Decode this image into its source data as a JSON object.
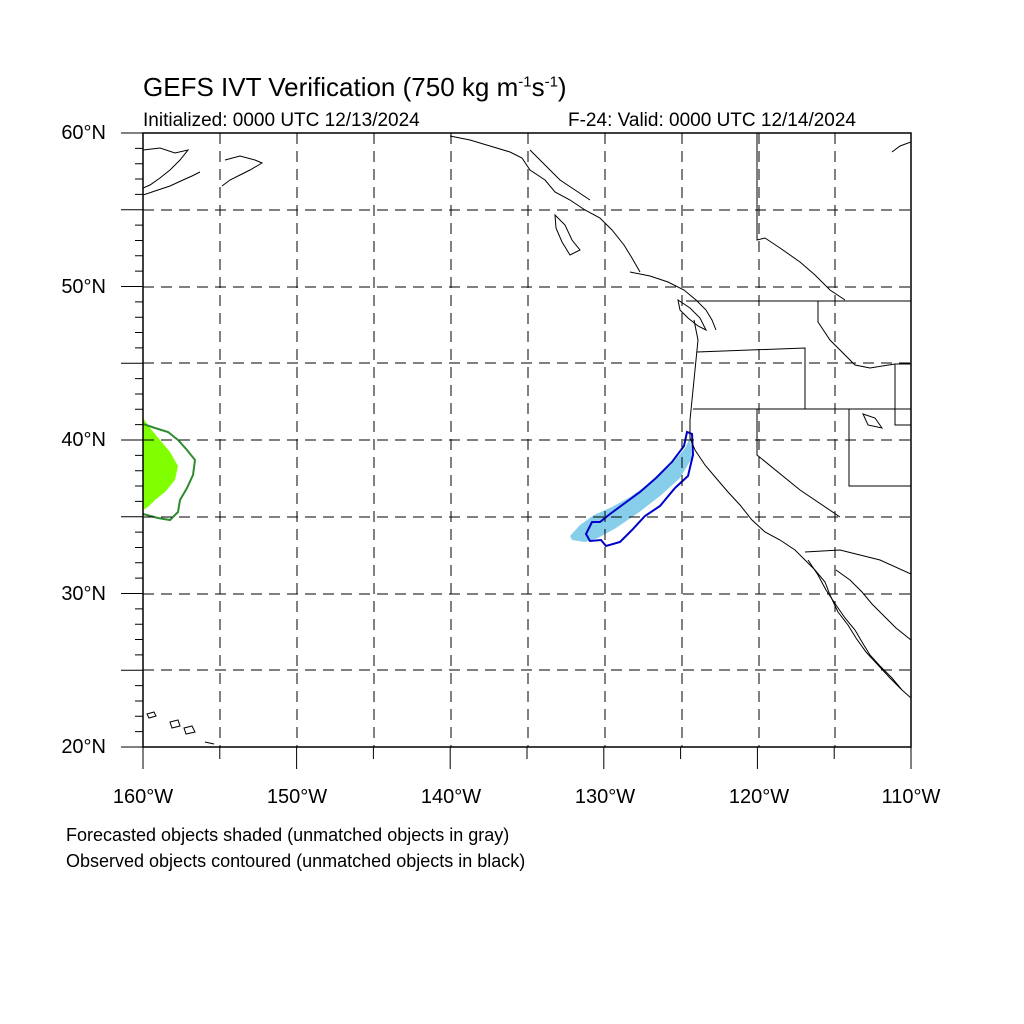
{
  "header": {
    "title_prefix": "GEFS IVT Verification (750 kg m",
    "title_sup1": "-1",
    "title_mid": "s",
    "title_sup2": "-1",
    "title_suffix": ")",
    "initialized": "Initialized: 0000 UTC 12/13/2024",
    "valid": "F-24: Valid: 0000 UTC 12/14/2024"
  },
  "axes": {
    "lat_labels": [
      "60°N",
      "50°N",
      "40°N",
      "30°N",
      "20°N"
    ],
    "lon_labels": [
      "160°W",
      "150°W",
      "140°W",
      "130°W",
      "120°W",
      "110°W"
    ],
    "lat_range": [
      20,
      60
    ],
    "lon_range": [
      -160,
      -110
    ],
    "gridlines": "dashed every 5°"
  },
  "legend": {
    "line1": "Forecasted objects shaded (unmatched objects in gray)",
    "line2": "Observed objects contoured (unmatched objects in black)"
  },
  "objects": [
    {
      "kind": "forecast",
      "color": "#7fff00",
      "region": "near 160°W, 36–41°N"
    },
    {
      "kind": "observed",
      "color": "#2e8b2e",
      "region": "near 160°W, 35–41°N"
    },
    {
      "kind": "forecast",
      "color": "#87ceeb",
      "region": "off California, 34–40°N, 124–132°W"
    },
    {
      "kind": "observed",
      "color": "#0000cd",
      "region": "off California, 33–41°N, 124–131°W"
    }
  ]
}
